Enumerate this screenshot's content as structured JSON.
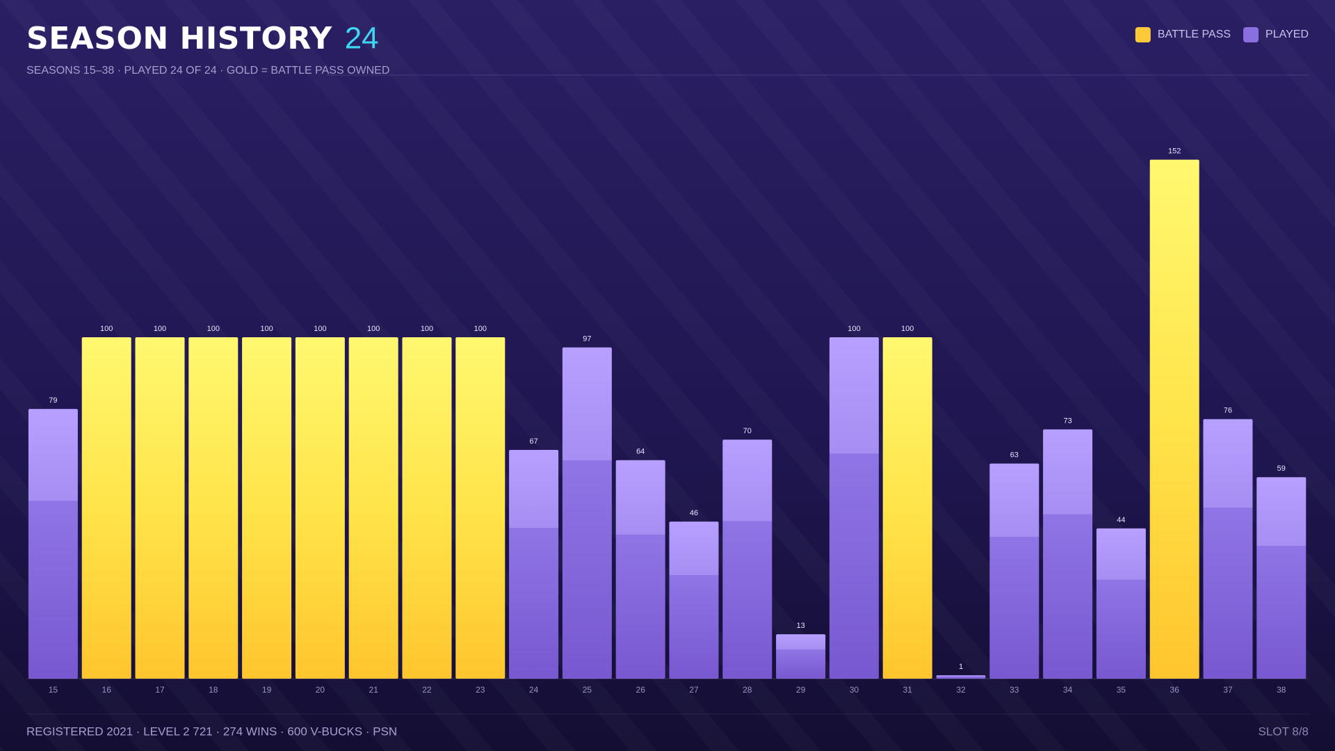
{
  "chart_data": {
    "type": "bar",
    "title": "SEASON HISTORY",
    "title_count": "24",
    "subtitle": "SEASONS 15–38 · PLAYED 24 OF 24 · GOLD = BATTLE PASS OWNED",
    "footer": "REGISTERED 2021 · LEVEL 2 721 · 274 WINS · 600 V-BUCKS · PSN",
    "footer_right": "SLOT 8/8",
    "categories": [
      "15",
      "16",
      "17",
      "18",
      "19",
      "20",
      "21",
      "22",
      "23",
      "24",
      "25",
      "26",
      "27",
      "28",
      "29",
      "30",
      "31",
      "32",
      "33",
      "34",
      "35",
      "36",
      "37",
      "38"
    ],
    "values": [
      79,
      100,
      100,
      100,
      100,
      100,
      100,
      100,
      100,
      67,
      97,
      64,
      46,
      70,
      13,
      100,
      100,
      1,
      63,
      73,
      44,
      152,
      76,
      59
    ],
    "battle_pass": [
      false,
      true,
      true,
      true,
      true,
      true,
      true,
      true,
      true,
      false,
      false,
      false,
      false,
      false,
      false,
      false,
      true,
      false,
      false,
      false,
      false,
      true,
      false,
      false
    ],
    "legend": [
      {
        "name": "BATTLE PASS",
        "color": "#ffc93a"
      },
      {
        "name": "PLAYED",
        "color": "#8a6fe0"
      }
    ],
    "legend_position": "top-right",
    "ylim": [
      0,
      190
    ]
  }
}
